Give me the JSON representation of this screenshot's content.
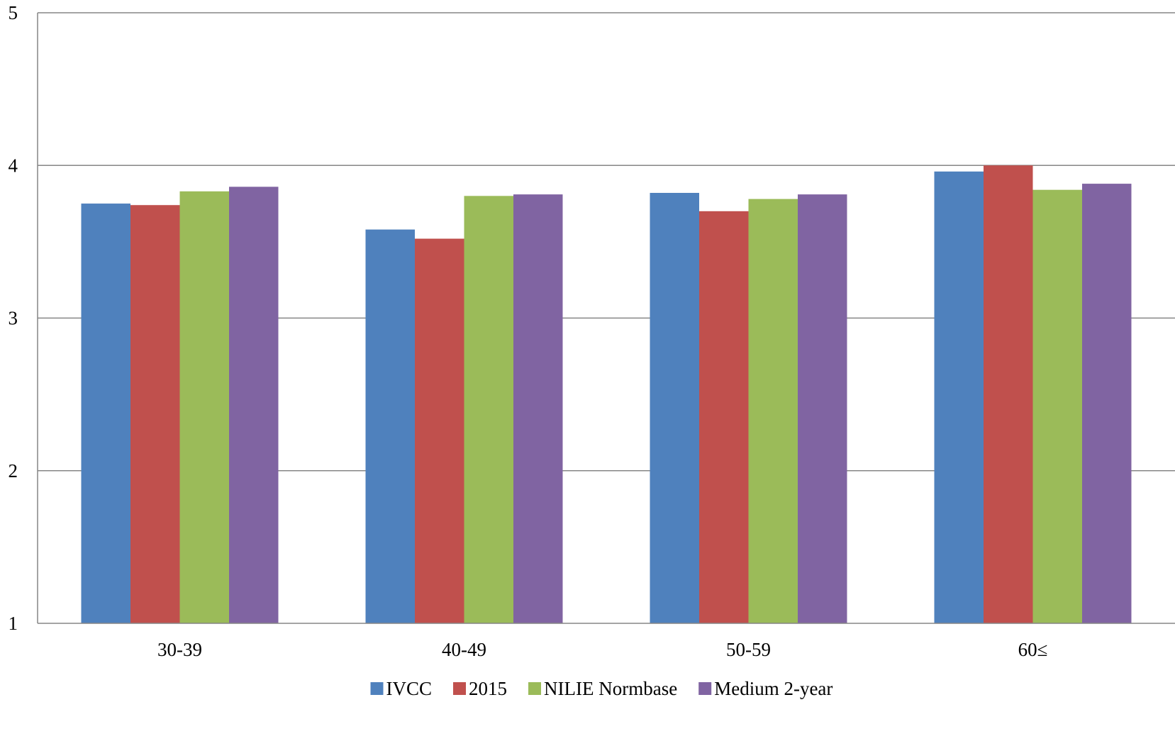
{
  "chart_data": {
    "type": "bar",
    "title": "",
    "xlabel": "",
    "ylabel": "",
    "categories": [
      "30-39",
      "40-49",
      "50-59",
      "60≤"
    ],
    "ylim": [
      1,
      5
    ],
    "yticks": [
      "1",
      "2",
      "3",
      "4",
      "5"
    ],
    "grid": true,
    "legend_position": "bottom",
    "series": [
      {
        "name": "IVCC",
        "color": "#4F81BD",
        "values": [
          3.75,
          3.58,
          3.82,
          3.96
        ]
      },
      {
        "name": "2015",
        "color": "#C0504D",
        "values": [
          3.74,
          3.52,
          3.7,
          4.0
        ]
      },
      {
        "name": "NILIE Normbase",
        "color": "#9BBB59",
        "values": [
          3.83,
          3.8,
          3.78,
          3.84
        ]
      },
      {
        "name": "Medium 2-year",
        "color": "#8064A2",
        "values": [
          3.86,
          3.81,
          3.81,
          3.88
        ]
      }
    ]
  }
}
